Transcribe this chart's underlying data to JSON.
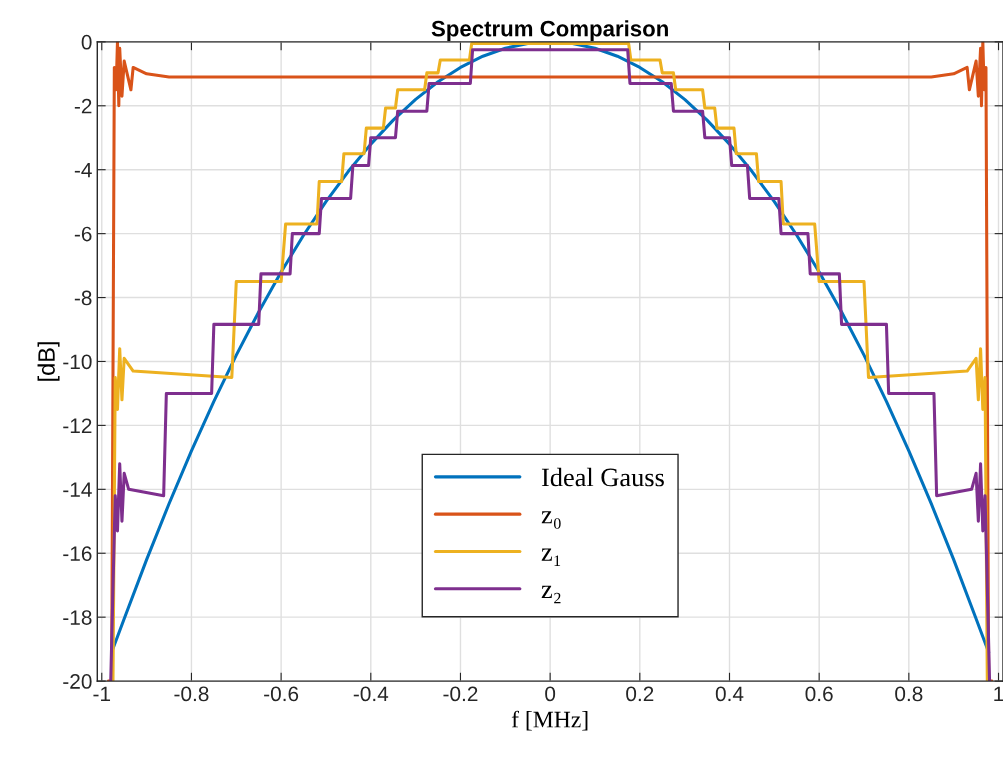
{
  "chart_data": {
    "type": "line",
    "title": "Spectrum Comparison",
    "xlabel": "f [MHz]",
    "ylabel": "[dB]",
    "xlim": [
      -1.01,
      1.01
    ],
    "ylim": [
      -20,
      0
    ],
    "xticks": [
      {
        "value": -1,
        "label": "-1"
      },
      {
        "value": -0.8,
        "label": "-0.8"
      },
      {
        "value": -0.6,
        "label": "-0.6"
      },
      {
        "value": -0.4,
        "label": "-0.4"
      },
      {
        "value": -0.2,
        "label": "-0.2"
      },
      0,
      0.2,
      0.4,
      0.6,
      0.8,
      1
    ],
    "yticks": [
      {
        "value": -20,
        "label": "-20"
      },
      {
        "value": -18,
        "label": "-18"
      },
      {
        "value": -16,
        "label": "-16"
      },
      {
        "value": -14,
        "label": "-14"
      },
      {
        "value": -12,
        "label": "-12"
      },
      {
        "value": -10,
        "label": "-10"
      },
      {
        "value": -8,
        "label": "-8"
      },
      {
        "value": -6,
        "label": "-6"
      },
      {
        "value": -4,
        "label": "-4"
      },
      {
        "value": -2,
        "label": "-2"
      },
      0
    ],
    "grid": true,
    "legend": "bottom",
    "line_style": "solid",
    "series": [
      {
        "name": "Ideal Gauss",
        "color": "#0072bd",
        "x": [
          -0.978,
          -0.95,
          -0.9,
          -0.85,
          -0.8,
          -0.75,
          -0.7,
          -0.65,
          -0.6,
          -0.55,
          -0.5,
          -0.45,
          -0.4,
          -0.35,
          -0.3,
          -0.25,
          -0.2,
          -0.15,
          -0.1,
          -0.05,
          0,
          0.05,
          0.1,
          0.15,
          0.2,
          0.25,
          0.3,
          0.35,
          0.4,
          0.45,
          0.5,
          0.55,
          0.6,
          0.65,
          0.7,
          0.75,
          0.8,
          0.85,
          0.9,
          0.95,
          0.978
        ],
        "values": [
          -19.1,
          -18.05,
          -16.2,
          -14.45,
          -12.8,
          -11.25,
          -9.8,
          -8.45,
          -7.2,
          -6.05,
          -5,
          -4.05,
          -3.2,
          -2.45,
          -1.8,
          -1.25,
          -0.8,
          -0.45,
          -0.2,
          -0.05,
          0,
          -0.05,
          -0.2,
          -0.45,
          -0.8,
          -1.25,
          -1.8,
          -2.45,
          -3.2,
          -4.05,
          -5,
          -6.05,
          -7.2,
          -8.45,
          -9.8,
          -11.25,
          -12.8,
          -14.45,
          -16.2,
          -18.05,
          -19.1
        ]
      },
      {
        "name": "z₀",
        "color": "#d95319",
        "x": [
          -0.985,
          -0.978,
          -0.972,
          -0.968,
          -0.965,
          -0.962,
          -0.96,
          -0.955,
          -0.95,
          -0.935,
          -0.93,
          -0.9,
          -0.85,
          0,
          0.85,
          0.9,
          0.93,
          0.935,
          0.95,
          0.955,
          0.96,
          0.962,
          0.965,
          0.968,
          0.972,
          0.978,
          0.985
        ],
        "values": [
          -20,
          -20,
          -0.8,
          -1.5,
          0,
          -2.0,
          -0.2,
          -1.7,
          -0.6,
          -1.5,
          -0.8,
          -1.0,
          -1.1,
          -1.1,
          -1.1,
          -1.0,
          -0.8,
          -1.5,
          -0.6,
          -1.7,
          -0.2,
          -2.0,
          0,
          -1.5,
          -0.8,
          -20,
          -20
        ]
      },
      {
        "name": "z₁",
        "color": "#edb120",
        "x": [
          -0.975,
          -0.97,
          -0.965,
          -0.96,
          -0.955,
          -0.95,
          -0.93,
          -0.71,
          -0.7,
          -0.6,
          -0.59,
          -0.52,
          -0.515,
          -0.465,
          -0.46,
          -0.415,
          -0.41,
          -0.372,
          -0.367,
          -0.345,
          -0.34,
          -0.28,
          -0.275,
          -0.25,
          -0.245,
          -0.18,
          -0.175,
          0.175,
          0.18,
          0.245,
          0.25,
          0.275,
          0.28,
          0.34,
          0.345,
          0.367,
          0.372,
          0.41,
          0.415,
          0.46,
          0.465,
          0.515,
          0.52,
          0.59,
          0.6,
          0.7,
          0.71,
          0.93,
          0.95,
          0.955,
          0.96,
          0.965,
          0.97,
          0.975
        ],
        "values": [
          -20,
          -10.5,
          -11.5,
          -9.6,
          -11.2,
          -9.9,
          -10.3,
          -10.5,
          -7.5,
          -7.5,
          -5.7,
          -5.7,
          -4.37,
          -4.37,
          -3.5,
          -3.5,
          -2.7,
          -2.7,
          -2.07,
          -2.07,
          -1.5,
          -1.5,
          -0.97,
          -0.97,
          -0.57,
          -0.57,
          -0.05,
          -0.05,
          -0.57,
          -0.57,
          -0.97,
          -0.97,
          -1.5,
          -1.5,
          -2.07,
          -2.07,
          -2.7,
          -2.7,
          -3.5,
          -3.5,
          -4.37,
          -4.37,
          -5.7,
          -5.7,
          -7.5,
          -7.5,
          -10.5,
          -10.3,
          -9.9,
          -11.2,
          -9.6,
          -11.5,
          -10.5,
          -20
        ]
      },
      {
        "name": "z₂",
        "color": "#7e2f8e",
        "x": [
          -0.98,
          -0.97,
          -0.965,
          -0.96,
          -0.955,
          -0.95,
          -0.94,
          -0.862,
          -0.856,
          -0.755,
          -0.75,
          -0.65,
          -0.645,
          -0.58,
          -0.575,
          -0.515,
          -0.51,
          -0.445,
          -0.44,
          -0.405,
          -0.4,
          -0.345,
          -0.34,
          -0.275,
          -0.27,
          -0.178,
          -0.173,
          0.173,
          0.178,
          0.27,
          0.275,
          0.34,
          0.345,
          0.4,
          0.405,
          0.44,
          0.445,
          0.51,
          0.515,
          0.575,
          0.58,
          0.645,
          0.65,
          0.75,
          0.755,
          0.856,
          0.862,
          0.94,
          0.95,
          0.955,
          0.96,
          0.965,
          0.97,
          0.98
        ],
        "values": [
          -20,
          -14.2,
          -15.3,
          -13.2,
          -15.0,
          -13.5,
          -14.0,
          -14.2,
          -11.0,
          -11.0,
          -8.84,
          -8.84,
          -7.26,
          -7.26,
          -6.0,
          -6.0,
          -4.9,
          -4.9,
          -3.87,
          -3.87,
          -3.0,
          -3.0,
          -2.17,
          -2.17,
          -1.3,
          -1.3,
          -0.25,
          -0.25,
          -1.3,
          -1.3,
          -2.17,
          -2.17,
          -3.0,
          -3.0,
          -3.87,
          -3.87,
          -4.9,
          -4.9,
          -6.0,
          -6.0,
          -7.26,
          -7.26,
          -8.84,
          -8.84,
          -11.0,
          -11.0,
          -14.2,
          -14.0,
          -13.5,
          -15.0,
          -13.2,
          -15.3,
          -14.2,
          -20
        ]
      }
    ]
  }
}
